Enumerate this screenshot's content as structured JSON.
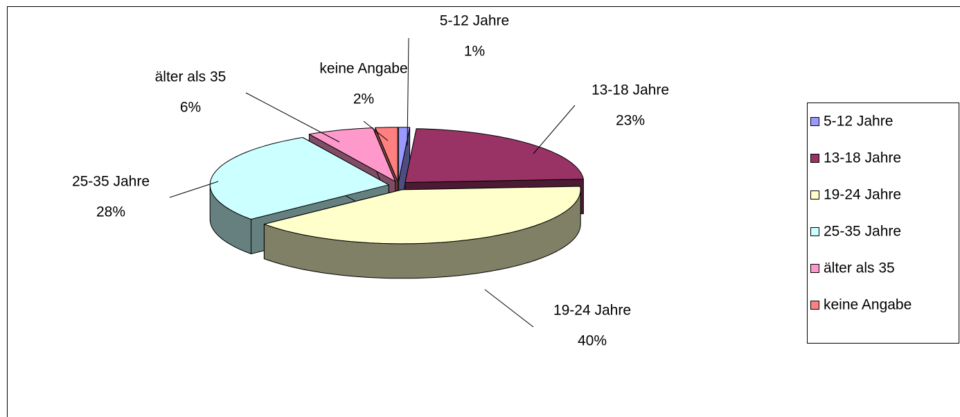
{
  "chart_data": {
    "type": "pie3d",
    "categories": [
      "5-12 Jahre",
      "13-18 Jahre",
      "19-24 Jahre",
      "25-35 Jahre",
      "älter als 35",
      "keine Angabe"
    ],
    "values": [
      1,
      23,
      40,
      28,
      6,
      2
    ],
    "value_labels": [
      "1%",
      "23%",
      "40%",
      "28%",
      "6%",
      "2%"
    ],
    "colors": [
      "#9999ff",
      "#993366",
      "#ffffcc",
      "#ccffff",
      "#ff99cc",
      "#ff8080"
    ],
    "legend": "right"
  }
}
